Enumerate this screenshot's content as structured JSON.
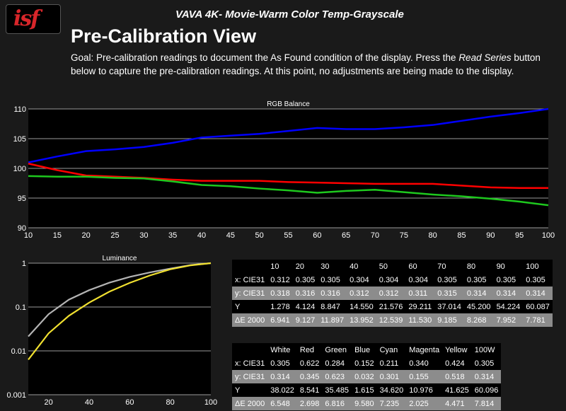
{
  "logo": {
    "text": "isf"
  },
  "header": {
    "subtitle": "VAVA 4K- Movie-Warm Color Temp-Grayscale",
    "title": "Pre-Calibration View",
    "goal_part1": "Goal: Pre-calibration readings to document the As Found condition of the display. Press the ",
    "goal_italic": "Read Series",
    "goal_part2": " button below to capture the pre-calibration readings. At this point, no adjustments are being made to the display."
  },
  "chart_data": [
    {
      "type": "line",
      "title": "RGB Balance",
      "x": [
        10,
        15,
        20,
        25,
        30,
        35,
        40,
        45,
        50,
        55,
        60,
        65,
        70,
        75,
        80,
        85,
        90,
        95,
        100
      ],
      "ylim": [
        90,
        110
      ],
      "xlim": [
        10,
        100
      ],
      "yticks": [
        90,
        95,
        100,
        105,
        110
      ],
      "grid": true,
      "series": [
        {
          "color": "#0000ff",
          "values": [
            101.0,
            102.0,
            102.9,
            103.2,
            103.6,
            104.3,
            105.2,
            105.5,
            105.8,
            106.3,
            106.8,
            106.6,
            106.6,
            106.9,
            107.3,
            108.0,
            108.7,
            109.3,
            110.0
          ]
        },
        {
          "color": "#ff0000",
          "values": [
            100.8,
            99.7,
            98.8,
            98.6,
            98.4,
            98.1,
            97.9,
            97.9,
            97.9,
            97.7,
            97.6,
            97.5,
            97.4,
            97.4,
            97.4,
            97.1,
            96.8,
            96.7,
            96.7
          ]
        },
        {
          "color": "#1ec81e",
          "values": [
            98.7,
            98.6,
            98.6,
            98.4,
            98.3,
            97.8,
            97.2,
            97.0,
            96.6,
            96.3,
            95.9,
            96.2,
            96.4,
            96.0,
            95.6,
            95.3,
            94.9,
            94.4,
            93.8
          ]
        }
      ]
    },
    {
      "type": "line",
      "title": "Luminance",
      "x": [
        10,
        20,
        30,
        40,
        50,
        60,
        70,
        80,
        90,
        100
      ],
      "ylim": [
        0.001,
        1
      ],
      "xlim": [
        10,
        100
      ],
      "log_y": true,
      "ytick_labels": [
        "1",
        "0.1",
        "0.01",
        "0.001"
      ],
      "xtick_labels": [
        "20",
        "40",
        "60",
        "80",
        "100"
      ],
      "grid": true,
      "series": [
        {
          "color": "#b4b4b4",
          "values": [
            0.0213,
            0.0686,
            0.1472,
            0.2421,
            0.359,
            0.4861,
            0.6159,
            0.7522,
            0.9023,
            1.0
          ]
        },
        {
          "color": "#f0e030",
          "values": [
            0.0063,
            0.0251,
            0.0631,
            0.1259,
            0.2239,
            0.3548,
            0.5248,
            0.7244,
            0.8913,
            1.0
          ]
        }
      ]
    }
  ],
  "table1": {
    "headers": [
      "",
      "10",
      "20",
      "30",
      "40",
      "50",
      "60",
      "70",
      "80",
      "90",
      "100"
    ],
    "rows": [
      {
        "style": "dark",
        "cells": [
          "x: CIE31",
          "0.312",
          "0.305",
          "0.305",
          "0.304",
          "0.304",
          "0.304",
          "0.305",
          "0.305",
          "0.305",
          "0.305"
        ]
      },
      {
        "style": "light",
        "cells": [
          "y: CIE31",
          "0.318",
          "0.316",
          "0.316",
          "0.312",
          "0.312",
          "0.311",
          "0.315",
          "0.314",
          "0.314",
          "0.314"
        ]
      },
      {
        "style": "dark",
        "cells": [
          "Y",
          "1.278",
          "4.124",
          "8.847",
          "14.550",
          "21.576",
          "29.211",
          "37.014",
          "45.200",
          "54.224",
          "60.087"
        ]
      },
      {
        "style": "light",
        "cells": [
          "ΔE 2000",
          "6.941",
          "9.127",
          "11.897",
          "13.952",
          "12.539",
          "11.530",
          "9.185",
          "8.268",
          "7.952",
          "7.781"
        ]
      }
    ]
  },
  "table2": {
    "headers": [
      "",
      "White",
      "Red",
      "Green",
      "Blue",
      "Cyan",
      "Magenta",
      "Yellow",
      "100W"
    ],
    "rows": [
      {
        "style": "dark",
        "cells": [
          "x: CIE31",
          "0.305",
          "0.622",
          "0.284",
          "0.152",
          "0.211",
          "0.340",
          "0.424",
          "0.305"
        ]
      },
      {
        "style": "light",
        "cells": [
          "y: CIE31",
          "0.314",
          "0.345",
          "0.623",
          "0.032",
          "0.301",
          "0.155",
          "0.518",
          "0.314"
        ]
      },
      {
        "style": "dark",
        "cells": [
          "Y",
          "38.022",
          "8.541",
          "35.485",
          "1.615",
          "34.620",
          "10.976",
          "41.625",
          "60.096"
        ]
      },
      {
        "style": "light",
        "cells": [
          "ΔE 2000",
          "6.548",
          "2.698",
          "6.816",
          "9.580",
          "7.235",
          "2.025",
          "4.471",
          "7.814"
        ]
      }
    ]
  }
}
